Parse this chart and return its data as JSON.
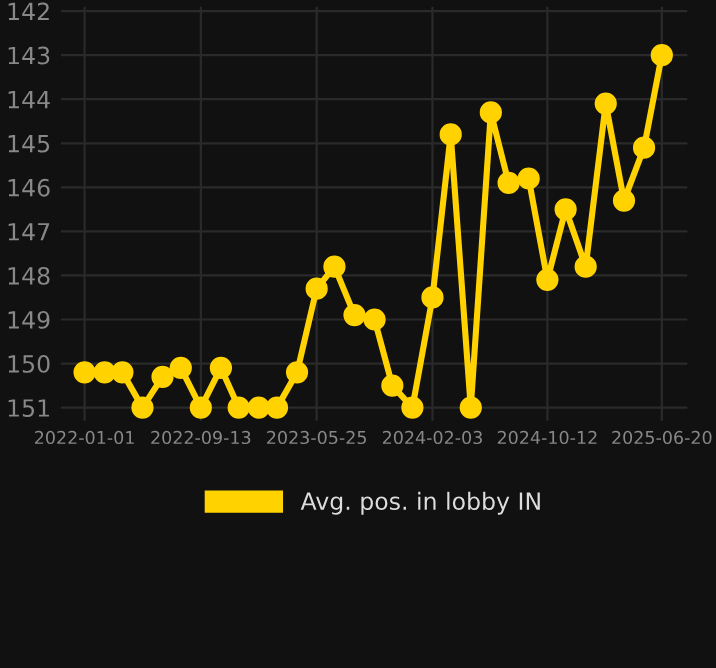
{
  "chart_data": {
    "type": "line",
    "x": [
      "2022-01-01",
      "2022-02-14",
      "2022-03-25",
      "2022-05-08",
      "2022-06-21",
      "2022-07-31",
      "2022-09-13",
      "2022-10-27",
      "2022-12-05",
      "2023-01-18",
      "2023-02-27",
      "2023-04-12",
      "2023-05-25",
      "2023-07-03",
      "2023-08-16",
      "2023-09-29",
      "2023-11-07",
      "2023-12-21",
      "2024-02-03",
      "2024-03-14",
      "2024-04-27",
      "2024-06-10",
      "2024-07-19",
      "2024-09-01",
      "2024-10-12",
      "2024-11-21",
      "2025-01-04",
      "2025-02-17",
      "2025-03-29",
      "2025-05-12",
      "2025-06-20"
    ],
    "series": [
      {
        "name": "Avg. pos. in lobby IN",
        "color": "#ffd200",
        "values": [
          150.2,
          150.2,
          150.2,
          151.0,
          150.3,
          150.1,
          151.0,
          150.1,
          151.0,
          151.0,
          151.0,
          150.2,
          148.3,
          147.8,
          148.9,
          149.0,
          150.5,
          151.0,
          148.5,
          144.8,
          151.0,
          144.3,
          145.9,
          145.8,
          148.1,
          146.5,
          147.8,
          144.1,
          146.3,
          145.1,
          143.0
        ]
      }
    ],
    "ylim": [
      151.3,
      141.9
    ],
    "yticks": [
      142,
      143,
      144,
      145,
      146,
      147,
      148,
      149,
      150,
      151
    ],
    "xlim": [
      "2021-11-10",
      "2025-08-15"
    ],
    "xticks": [
      {
        "value": "2022-01-01",
        "label": "2022-01-01"
      },
      {
        "value": "2022-09-13",
        "label": "2022-09-13"
      },
      {
        "value": "2023-05-25",
        "label": "2023-05-25"
      },
      {
        "value": "2024-02-03",
        "label": "2024-02-03"
      },
      {
        "value": "2024-10-12",
        "label": "2024-10-12"
      },
      {
        "value": "2025-06-20",
        "label": "2025-06-20"
      }
    ],
    "grid": true,
    "legend": "bottom",
    "marker": "circle",
    "line_style": "solid"
  }
}
